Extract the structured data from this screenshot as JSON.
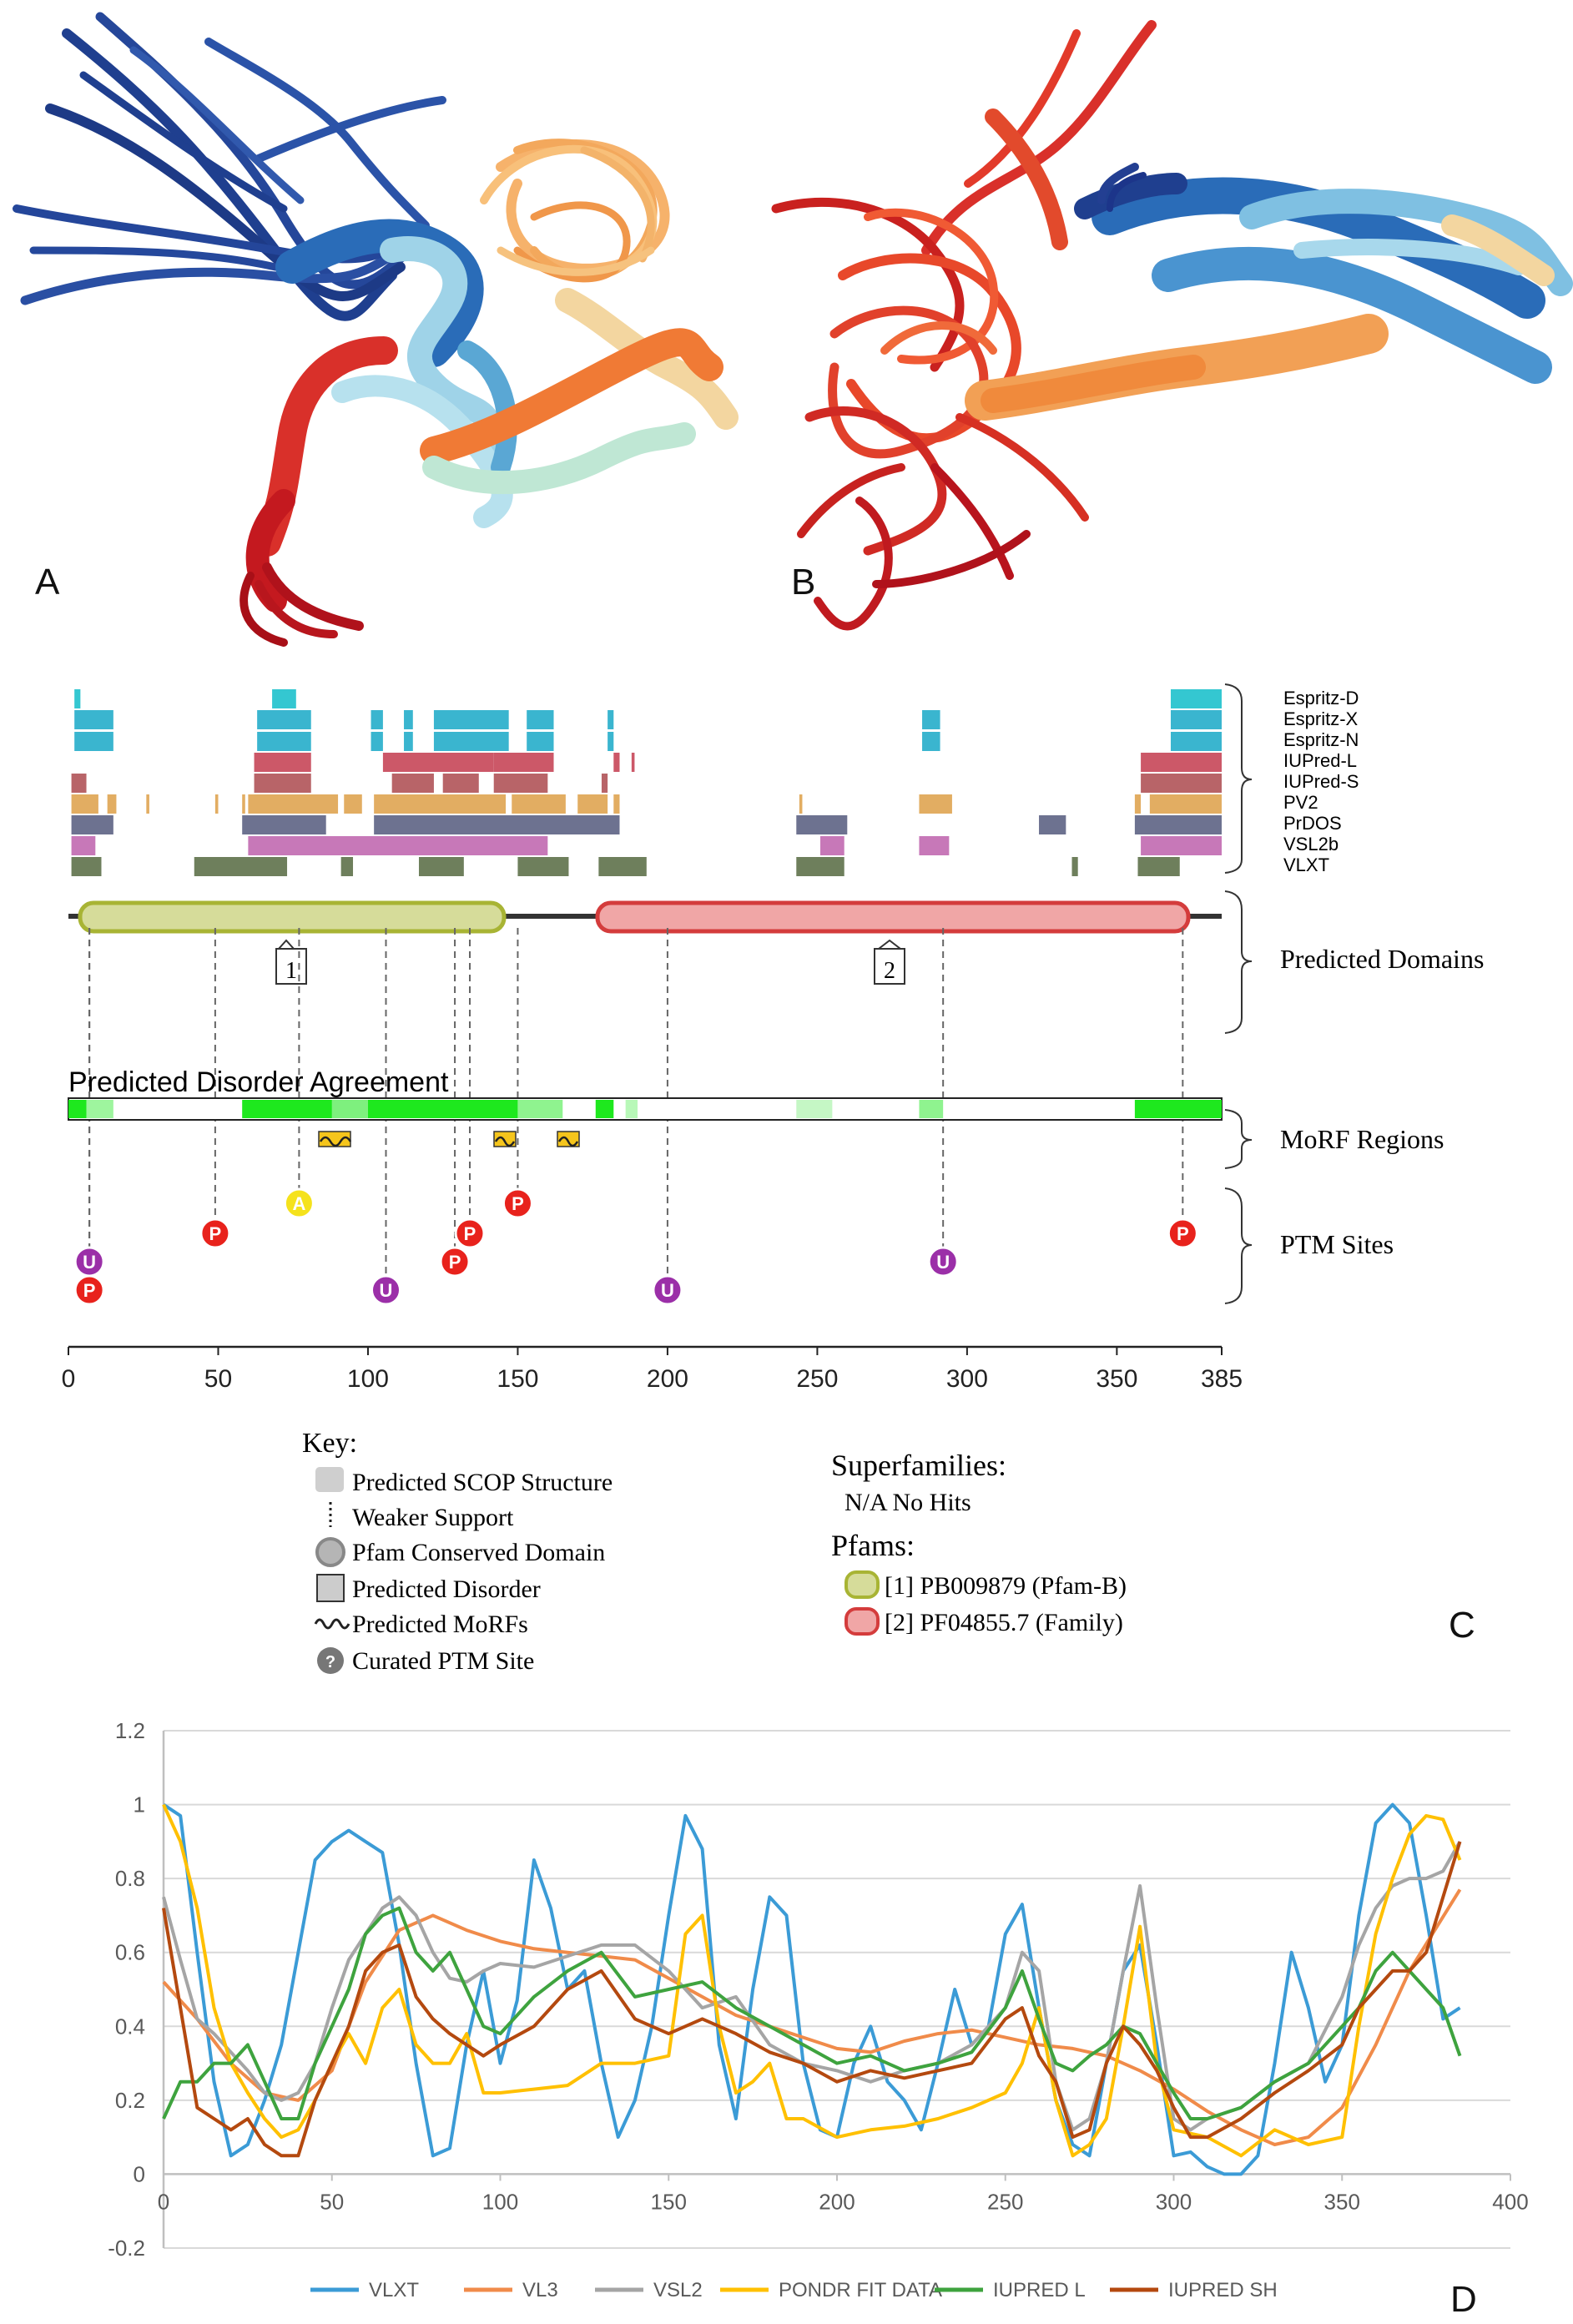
{
  "panels": {
    "a_label": "A",
    "b_label": "B",
    "c_label": "C",
    "d_label": "D"
  },
  "colors": {
    "blue_dark": "#1f3f8f",
    "blue_mid": "#2a6cb8",
    "blue_light": "#9fd3e8",
    "cream": "#f3d6a0",
    "orange": "#f08a3c",
    "orange_light": "#f6b26b",
    "red": "#d9302a",
    "red_dark": "#b0121b",
    "mint": "#bfe7d4",
    "disorder_green": "#1ee81e"
  },
  "predictors": {
    "names": [
      "Espritz-D",
      "Espritz-X",
      "Espritz-N",
      "IUPred-L",
      "IUPred-S",
      "PV2",
      "PrDOS",
      "VSL2b",
      "VLXT"
    ],
    "colors": [
      "#34c7d1",
      "#3ab5cf",
      "#3ab5cf",
      "#cc5868",
      "#b86468",
      "#e2ad62",
      "#6d7290",
      "#c778b8",
      "#6e7f5c"
    ]
  },
  "domains_panel": {
    "predicted_domains_label": "Predicted Domains",
    "domain1_label": "1",
    "domain2_label": "2",
    "agreement_title": "Predicted Disorder Agreement",
    "morf_label": "MoRF Regions",
    "ptm_label": "PTM Sites",
    "axis_ticks": [
      "0",
      "50",
      "100",
      "150",
      "200",
      "250",
      "300",
      "350",
      "385"
    ],
    "ptm_sites": [
      {
        "pos": 7,
        "letter": "U",
        "row": 2,
        "color": "#9b2fa8"
      },
      {
        "pos": 7,
        "letter": "P",
        "row": 3,
        "color": "#e8221c"
      },
      {
        "pos": 49,
        "letter": "P",
        "row": 1,
        "color": "#e8221c"
      },
      {
        "pos": 77,
        "letter": "A",
        "row": 0,
        "color": "#f5e21c"
      },
      {
        "pos": 106,
        "letter": "U",
        "row": 3,
        "color": "#9b2fa8"
      },
      {
        "pos": 129,
        "letter": "P",
        "row": 2,
        "color": "#e8221c"
      },
      {
        "pos": 134,
        "letter": "P",
        "row": 1,
        "color": "#e8221c"
      },
      {
        "pos": 150,
        "letter": "P",
        "row": 0,
        "color": "#e8221c"
      },
      {
        "pos": 200,
        "letter": "U",
        "row": 3,
        "color": "#9b2fa8"
      },
      {
        "pos": 292,
        "letter": "U",
        "row": 2,
        "color": "#9b2fa8"
      },
      {
        "pos": 372,
        "letter": "P",
        "row": 1,
        "color": "#e8221c"
      }
    ]
  },
  "key": {
    "title": "Key:",
    "items": [
      {
        "label": "Predicted SCOP Structure",
        "icon": "gray-rounded-rect-icon"
      },
      {
        "label": "Weaker Support",
        "icon": "dotted-line-icon"
      },
      {
        "label": "Pfam Conserved Domain",
        "icon": "pfam-domain-icon"
      },
      {
        "label": "Predicted Disorder",
        "icon": "disorder-box-icon"
      },
      {
        "label": "Predicted MoRFs",
        "icon": "morf-wave-icon"
      },
      {
        "label": "Curated PTM Site",
        "icon": "ptm-question-icon"
      }
    ],
    "superfamilies_title": "Superfamilies:",
    "superfamilies_value": "N/A No Hits",
    "pfams_title": "Pfams:",
    "pfam1": "[1] PB009879 (Pfam-B)",
    "pfam2": "[2] PF04855.7 (Family)"
  },
  "chart_data": {
    "type": "line",
    "xlim": [
      0,
      400
    ],
    "ylim": [
      -0.2,
      1.2
    ],
    "x_ticks": [
      0,
      50,
      100,
      150,
      200,
      250,
      300,
      350,
      400
    ],
    "y_ticks": [
      -0.2,
      0,
      0.2,
      0.4,
      0.6,
      0.8,
      1,
      1.2
    ],
    "grid": "horizontal",
    "legend_position": "bottom",
    "series": [
      {
        "name": "VLXT",
        "color": "#3b9bd6",
        "x": [
          0,
          5,
          10,
          15,
          20,
          25,
          30,
          35,
          40,
          45,
          50,
          55,
          60,
          65,
          70,
          75,
          80,
          85,
          90,
          95,
          100,
          105,
          110,
          115,
          120,
          125,
          130,
          135,
          140,
          145,
          150,
          155,
          160,
          165,
          170,
          175,
          180,
          185,
          190,
          195,
          200,
          205,
          210,
          215,
          220,
          225,
          230,
          235,
          240,
          245,
          250,
          255,
          260,
          265,
          270,
          275,
          280,
          285,
          290,
          295,
          300,
          305,
          310,
          315,
          320,
          325,
          330,
          335,
          340,
          345,
          350,
          355,
          360,
          365,
          370,
          375,
          380,
          385
        ],
        "y": [
          1.0,
          0.97,
          0.6,
          0.25,
          0.05,
          0.08,
          0.2,
          0.35,
          0.6,
          0.85,
          0.9,
          0.93,
          0.9,
          0.87,
          0.62,
          0.3,
          0.05,
          0.07,
          0.35,
          0.55,
          0.3,
          0.47,
          0.85,
          0.72,
          0.5,
          0.55,
          0.3,
          0.1,
          0.2,
          0.4,
          0.7,
          0.97,
          0.88,
          0.35,
          0.15,
          0.5,
          0.75,
          0.7,
          0.3,
          0.12,
          0.1,
          0.3,
          0.4,
          0.25,
          0.2,
          0.12,
          0.3,
          0.5,
          0.35,
          0.4,
          0.65,
          0.73,
          0.45,
          0.2,
          0.08,
          0.05,
          0.3,
          0.55,
          0.62,
          0.35,
          0.05,
          0.06,
          0.02,
          0.0,
          0.0,
          0.05,
          0.3,
          0.6,
          0.45,
          0.25,
          0.35,
          0.7,
          0.95,
          1.0,
          0.95,
          0.7,
          0.42,
          0.45
        ]
      },
      {
        "name": "VL3",
        "color": "#f08b4a",
        "x": [
          0,
          10,
          20,
          30,
          40,
          50,
          60,
          70,
          80,
          90,
          100,
          110,
          120,
          130,
          140,
          150,
          160,
          170,
          180,
          190,
          200,
          210,
          220,
          230,
          240,
          250,
          260,
          270,
          280,
          290,
          300,
          310,
          320,
          330,
          340,
          350,
          360,
          370,
          385
        ],
        "y": [
          0.52,
          0.42,
          0.3,
          0.22,
          0.2,
          0.28,
          0.52,
          0.66,
          0.7,
          0.66,
          0.63,
          0.61,
          0.6,
          0.59,
          0.58,
          0.53,
          0.48,
          0.43,
          0.4,
          0.37,
          0.34,
          0.33,
          0.36,
          0.38,
          0.39,
          0.37,
          0.35,
          0.34,
          0.32,
          0.28,
          0.23,
          0.17,
          0.12,
          0.08,
          0.1,
          0.18,
          0.35,
          0.55,
          0.77
        ]
      },
      {
        "name": "VSL2",
        "color": "#a5a5a5",
        "x": [
          0,
          5,
          10,
          15,
          20,
          25,
          30,
          35,
          40,
          45,
          50,
          55,
          60,
          65,
          70,
          75,
          80,
          85,
          90,
          95,
          100,
          110,
          120,
          130,
          140,
          150,
          160,
          170,
          180,
          190,
          200,
          210,
          220,
          230,
          240,
          250,
          255,
          260,
          265,
          270,
          275,
          280,
          285,
          290,
          295,
          300,
          305,
          310,
          320,
          330,
          340,
          350,
          355,
          360,
          365,
          370,
          375,
          380,
          385
        ],
        "y": [
          0.75,
          0.58,
          0.42,
          0.38,
          0.33,
          0.28,
          0.22,
          0.2,
          0.22,
          0.3,
          0.45,
          0.58,
          0.65,
          0.72,
          0.75,
          0.7,
          0.6,
          0.53,
          0.52,
          0.55,
          0.57,
          0.56,
          0.59,
          0.62,
          0.62,
          0.55,
          0.45,
          0.48,
          0.35,
          0.3,
          0.28,
          0.25,
          0.28,
          0.3,
          0.35,
          0.45,
          0.6,
          0.55,
          0.25,
          0.12,
          0.15,
          0.3,
          0.55,
          0.78,
          0.45,
          0.15,
          0.12,
          0.15,
          0.18,
          0.25,
          0.3,
          0.48,
          0.62,
          0.72,
          0.78,
          0.8,
          0.8,
          0.82,
          0.9
        ]
      },
      {
        "name": "PONDR FIT DATA",
        "color": "#ffc000",
        "x": [
          0,
          5,
          10,
          15,
          20,
          25,
          30,
          35,
          40,
          45,
          50,
          55,
          60,
          65,
          70,
          75,
          80,
          85,
          90,
          95,
          100,
          110,
          120,
          130,
          140,
          150,
          155,
          160,
          165,
          170,
          175,
          180,
          185,
          190,
          200,
          210,
          220,
          230,
          240,
          250,
          255,
          260,
          265,
          270,
          275,
          280,
          285,
          290,
          295,
          300,
          310,
          320,
          330,
          340,
          350,
          355,
          360,
          365,
          370,
          375,
          380,
          385
        ],
        "y": [
          1.0,
          0.9,
          0.72,
          0.45,
          0.3,
          0.22,
          0.15,
          0.1,
          0.12,
          0.2,
          0.3,
          0.38,
          0.3,
          0.45,
          0.5,
          0.35,
          0.3,
          0.3,
          0.38,
          0.22,
          0.22,
          0.23,
          0.24,
          0.3,
          0.3,
          0.32,
          0.65,
          0.7,
          0.4,
          0.22,
          0.25,
          0.3,
          0.15,
          0.15,
          0.1,
          0.12,
          0.13,
          0.15,
          0.18,
          0.22,
          0.3,
          0.45,
          0.2,
          0.05,
          0.08,
          0.15,
          0.4,
          0.67,
          0.3,
          0.12,
          0.1,
          0.05,
          0.12,
          0.08,
          0.1,
          0.4,
          0.65,
          0.8,
          0.92,
          0.97,
          0.96,
          0.85
        ]
      },
      {
        "name": "IUPRED L",
        "color": "#3ea33e",
        "x": [
          0,
          5,
          10,
          15,
          20,
          25,
          30,
          35,
          40,
          45,
          50,
          55,
          60,
          65,
          70,
          75,
          80,
          85,
          90,
          95,
          100,
          110,
          120,
          130,
          140,
          150,
          160,
          170,
          180,
          190,
          200,
          210,
          220,
          230,
          240,
          250,
          255,
          260,
          265,
          270,
          275,
          280,
          285,
          290,
          295,
          300,
          305,
          310,
          320,
          330,
          340,
          350,
          355,
          360,
          365,
          370,
          375,
          380,
          385
        ],
        "y": [
          0.15,
          0.25,
          0.25,
          0.3,
          0.3,
          0.35,
          0.25,
          0.15,
          0.15,
          0.3,
          0.4,
          0.5,
          0.65,
          0.7,
          0.72,
          0.6,
          0.55,
          0.6,
          0.5,
          0.4,
          0.38,
          0.48,
          0.55,
          0.6,
          0.48,
          0.5,
          0.52,
          0.45,
          0.4,
          0.35,
          0.3,
          0.32,
          0.28,
          0.3,
          0.33,
          0.45,
          0.55,
          0.42,
          0.3,
          0.28,
          0.32,
          0.35,
          0.4,
          0.38,
          0.3,
          0.22,
          0.15,
          0.15,
          0.18,
          0.25,
          0.3,
          0.4,
          0.45,
          0.55,
          0.6,
          0.55,
          0.5,
          0.45,
          0.32
        ]
      },
      {
        "name": "IUPRED SH",
        "color": "#b4490f",
        "x": [
          0,
          5,
          10,
          15,
          20,
          25,
          30,
          35,
          40,
          45,
          50,
          55,
          60,
          65,
          70,
          75,
          80,
          85,
          90,
          95,
          100,
          110,
          120,
          130,
          140,
          150,
          160,
          170,
          180,
          190,
          200,
          210,
          220,
          230,
          240,
          250,
          255,
          260,
          265,
          270,
          275,
          280,
          285,
          290,
          295,
          300,
          305,
          310,
          320,
          330,
          340,
          350,
          355,
          360,
          365,
          370,
          375,
          380,
          385
        ],
        "y": [
          0.72,
          0.45,
          0.18,
          0.15,
          0.12,
          0.15,
          0.08,
          0.05,
          0.05,
          0.2,
          0.3,
          0.4,
          0.55,
          0.6,
          0.62,
          0.48,
          0.42,
          0.38,
          0.35,
          0.32,
          0.35,
          0.4,
          0.5,
          0.55,
          0.42,
          0.38,
          0.42,
          0.38,
          0.33,
          0.3,
          0.25,
          0.28,
          0.26,
          0.28,
          0.3,
          0.42,
          0.45,
          0.32,
          0.25,
          0.1,
          0.12,
          0.3,
          0.4,
          0.35,
          0.28,
          0.18,
          0.1,
          0.1,
          0.15,
          0.22,
          0.28,
          0.35,
          0.45,
          0.5,
          0.55,
          0.55,
          0.6,
          0.75,
          0.9
        ]
      }
    ]
  }
}
